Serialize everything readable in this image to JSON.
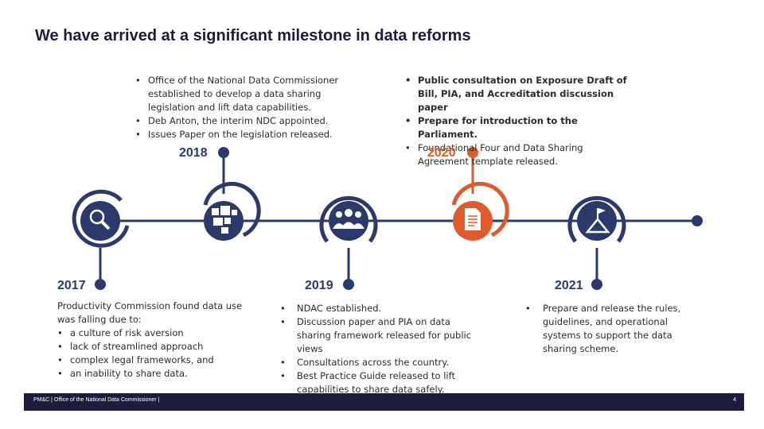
{
  "title": "We have arrived at a significant milestone in data reforms",
  "colors": {
    "navy": "#2b3a6b",
    "orange": "#e05a2b",
    "footer": "#1c1c3c"
  },
  "milestones": {
    "y2017": {
      "year": "2017",
      "lead": "Productivity Commission found data use was falling due to:",
      "items": [
        "a culture of risk aversion",
        "lack of streamlined approach",
        "complex legal frameworks, and",
        "an inability to share data."
      ],
      "icon": "magnifier-icon"
    },
    "y2018": {
      "year": "2018",
      "items": [
        "Office of the National Data Commissioner established to develop a data sharing legislation and lift data capabilities.",
        "Deb Anton, the interim NDC appointed.",
        "Issues Paper on the legislation released."
      ],
      "icon": "blocks-icon"
    },
    "y2019": {
      "year": "2019",
      "items": [
        "NDAC established.",
        "Discussion paper and PIA on data sharing framework released for public views",
        "Consultations across the country.",
        "Best Practice Guide released to lift capabilities to share data safely."
      ],
      "icon": "people-icon"
    },
    "y2020": {
      "year": "2020",
      "items_bold": [
        "Public consultation on Exposure Draft of Bill, PIA, and Accreditation discussion paper",
        "Prepare for introduction to the Parliament."
      ],
      "items": [
        "Foundational Four and Data Sharing Agreement template released."
      ],
      "icon": "document-icon"
    },
    "y2021": {
      "year": "2021",
      "items": [
        "Prepare and release the rules, guidelines, and operational systems to support the data sharing scheme."
      ],
      "icon": "flag-summit-icon"
    }
  },
  "footer": {
    "text": "PM&C | Office of the National Data Commissioner |",
    "page": "4"
  }
}
